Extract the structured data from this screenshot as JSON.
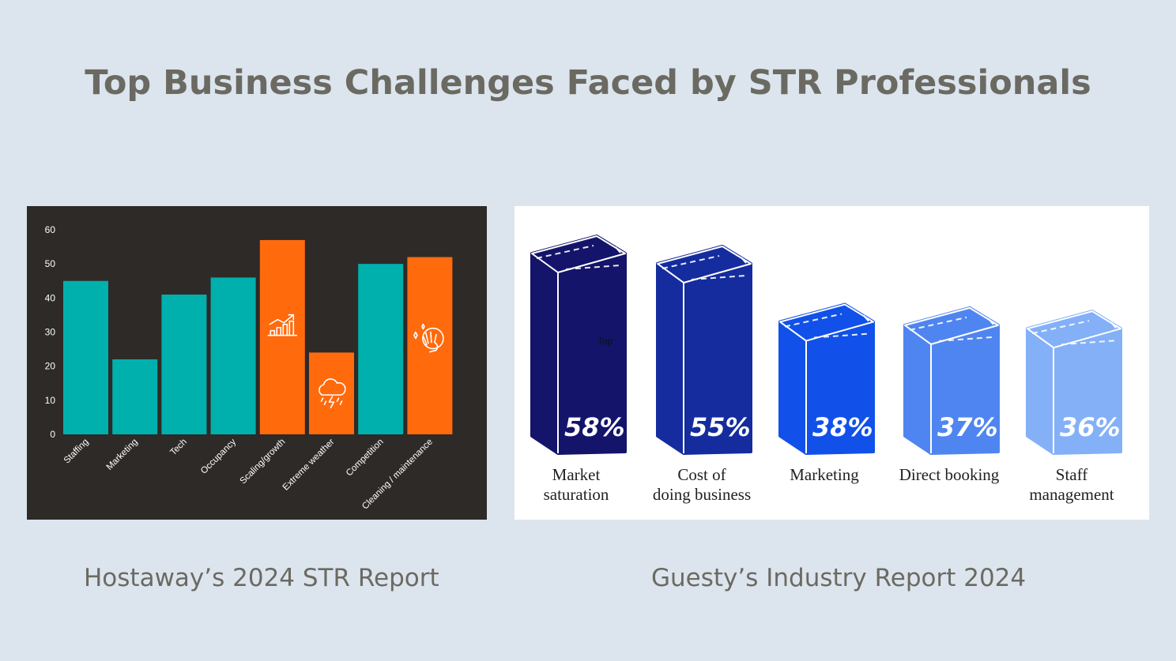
{
  "title": "Top Business Challenges Faced by STR Professionals",
  "captions": {
    "left": "Hostaway’s 2024 STR Report",
    "right": "Guesty’s Industry Report 2024"
  },
  "stray_label": "Top",
  "colors": {
    "background": "#dce5ee",
    "teal": "#00b0ad",
    "orange": "#ff6a0d",
    "panel_dark": "#2d2a28"
  },
  "chart_data": [
    {
      "type": "bar",
      "source": "Hostaway’s 2024 STR Report",
      "categories": [
        "Staffing",
        "Marketing",
        "Tech",
        "Occupancy",
        "Scaling/growth",
        "Extreme weather",
        "Competition",
        "Cleaning / maintenance"
      ],
      "values": [
        45,
        22,
        41,
        46,
        57,
        24,
        50,
        52
      ],
      "highlighted": [
        false,
        false,
        false,
        false,
        true,
        true,
        false,
        true
      ],
      "icons": [
        null,
        null,
        null,
        null,
        "growth-chart-icon",
        "storm-cloud-icon",
        null,
        "cleaning-hand-icon"
      ],
      "ylim": [
        0,
        60
      ],
      "yticks": [
        0,
        10,
        20,
        30,
        40,
        50,
        60
      ],
      "grid": false
    },
    {
      "type": "bar",
      "source": "Guesty’s Industry Report 2024",
      "categories": [
        [
          "Market",
          "saturation"
        ],
        [
          "Cost of",
          "doing business"
        ],
        [
          "Marketing"
        ],
        [
          "Direct booking"
        ],
        [
          "Staff",
          "management"
        ]
      ],
      "values": [
        58,
        55,
        38,
        37,
        36
      ],
      "value_labels": [
        "58%",
        "55%",
        "38%",
        "37%",
        "36%"
      ],
      "colors": [
        "#13146a",
        "#142c9e",
        "#1151ea",
        "#4f85f0",
        "#84b0f8"
      ],
      "style": "3d-box"
    }
  ]
}
